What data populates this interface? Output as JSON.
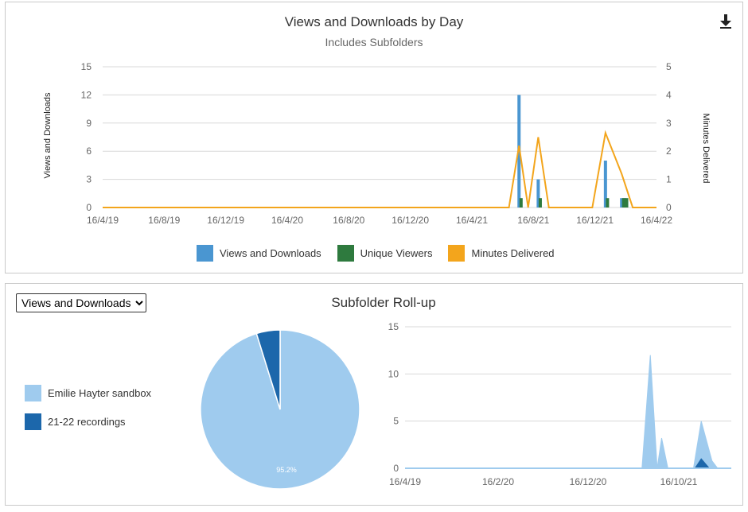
{
  "top_chart": {
    "title": "Views and Downloads by Day",
    "subtitle": "Includes Subfolders",
    "download_icon": "download-icon",
    "y_left_label": "Views and Downloads",
    "y_right_label": "Minutes Delivered",
    "y_left_ticks": [
      "0",
      "3",
      "6",
      "9",
      "12",
      "15"
    ],
    "y_right_ticks": [
      "0",
      "1",
      "2",
      "3",
      "4",
      "5"
    ],
    "x_ticks": [
      "16/4/19",
      "16/8/19",
      "16/12/19",
      "16/4/20",
      "16/8/20",
      "16/12/20",
      "16/4/21",
      "16/8/21",
      "16/12/21",
      "16/4/22"
    ],
    "legend": [
      "Views and Downloads",
      "Unique Viewers",
      "Minutes Delivered"
    ]
  },
  "bottom_panel": {
    "dropdown_value": "Views and Downloads",
    "title": "Subfolder Roll-up",
    "pie_legend": [
      "Emilie Hayter sandbox",
      "21-22 recordings"
    ],
    "pie_label": "95.2%",
    "area_y_ticks": [
      "0",
      "5",
      "10",
      "15"
    ],
    "area_x_ticks": [
      "16/4/19",
      "16/2/20",
      "16/12/20",
      "16/10/21"
    ]
  },
  "colors": {
    "views": "#4a96d1",
    "unique": "#2e7a3e",
    "minutes": "#f3a51c",
    "pie_light": "#9fcbee",
    "pie_dark": "#1c67ab"
  },
  "chart_data": [
    {
      "type": "bar",
      "title": "Views and Downloads by Day",
      "subtitle": "Includes Subfolders",
      "ylabel": "Views and Downloads",
      "y2label": "Minutes Delivered",
      "ylim": [
        0,
        15
      ],
      "y2lim": [
        0,
        5
      ],
      "x_range": [
        "2019-04-16",
        "2022-04-16"
      ],
      "series": [
        {
          "name": "Views and Downloads",
          "type": "bar",
          "x": [
            "2021-07-18",
            "2021-08-25",
            "2022-01-05",
            "2022-02-06",
            "2022-02-12"
          ],
          "values": [
            12,
            3,
            5,
            1,
            1
          ]
        },
        {
          "name": "Unique Viewers",
          "type": "bar",
          "x": [
            "2021-07-22",
            "2021-08-29",
            "2022-01-09",
            "2022-02-10",
            "2022-02-16"
          ],
          "values": [
            1,
            1,
            1,
            1,
            1
          ]
        },
        {
          "name": "Minutes Delivered",
          "type": "line",
          "axis": "right",
          "x": [
            "2019-04-16",
            "2021-06-28",
            "2021-07-18",
            "2021-08-05",
            "2021-08-25",
            "2021-09-15",
            "2021-12-10",
            "2022-01-05",
            "2022-02-06",
            "2022-02-28",
            "2022-04-16"
          ],
          "values": [
            0,
            0,
            2.2,
            0,
            2.5,
            0,
            0,
            2.65,
            1.2,
            0,
            0
          ]
        }
      ],
      "legend": "bottom"
    },
    {
      "type": "pie",
      "title": "Subfolder Roll-up",
      "labels": [
        "Emilie Hayter sandbox",
        "21-22 recordings"
      ],
      "values": [
        95.2,
        4.8
      ],
      "legend": "left"
    },
    {
      "type": "area",
      "ylim": [
        0,
        15
      ],
      "x_range": [
        "2019-04-16",
        "2022-04-16"
      ],
      "series": [
        {
          "name": "Emilie Hayter sandbox",
          "x": [
            "2019-04-16",
            "2021-06-20",
            "2021-07-18",
            "2021-08-10",
            "2021-08-25",
            "2021-09-15",
            "2021-12-10",
            "2022-01-05",
            "2022-02-10",
            "2022-03-01"
          ],
          "values": [
            0,
            0,
            12,
            0,
            3.2,
            0,
            0,
            5,
            0.8,
            0
          ]
        },
        {
          "name": "21-22 recordings",
          "x": [
            "2019-04-16",
            "2021-12-15",
            "2022-01-05",
            "2022-02-01",
            "2022-03-01"
          ],
          "values": [
            0,
            0,
            1,
            0,
            0
          ]
        }
      ],
      "x_ticks": [
        "16/4/19",
        "16/2/20",
        "16/12/20",
        "16/10/21"
      ]
    }
  ]
}
